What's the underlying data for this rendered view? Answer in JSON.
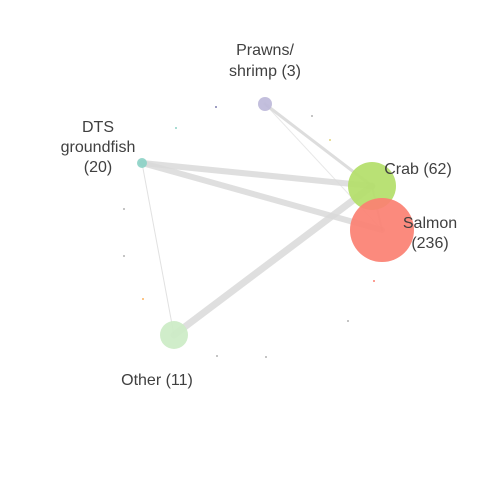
{
  "diagram": {
    "nodes": [
      {
        "id": "prawns",
        "lines": [
          "Prawns/",
          "shrimp (3)"
        ],
        "color": "#bebada"
      },
      {
        "id": "dts",
        "lines": [
          "DTS",
          "groundfish",
          "(20)"
        ],
        "color": "#8dd3c7"
      },
      {
        "id": "crab",
        "lines": [
          "Crab (62)"
        ],
        "color": "#b3de69"
      },
      {
        "id": "salmon",
        "lines": [
          "Salmon",
          "(236)"
        ],
        "color": "#fb8072"
      },
      {
        "id": "other",
        "lines": [
          "Other (11)"
        ],
        "color": "#ccebc5"
      }
    ],
    "edges": [
      {
        "from": "prawns",
        "to": "crab"
      },
      {
        "from": "prawns",
        "to": "salmon"
      },
      {
        "from": "dts",
        "to": "crab"
      },
      {
        "from": "dts",
        "to": "salmon"
      },
      {
        "from": "dts",
        "to": "other"
      },
      {
        "from": "other",
        "to": "crab"
      },
      {
        "from": "crab",
        "to": "salmon"
      }
    ],
    "edge_color": "#d9d9d9"
  }
}
